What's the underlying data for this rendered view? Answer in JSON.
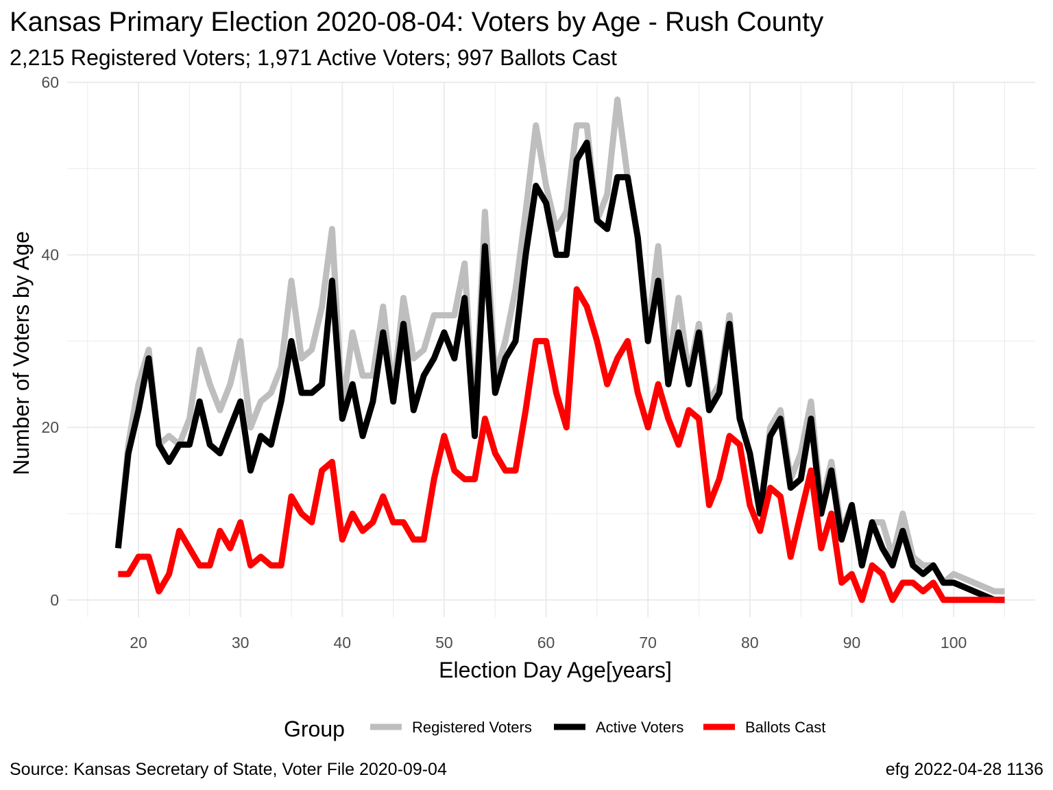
{
  "title": "Kansas Primary Election 2020-08-04:  Voters by Age - Rush County",
  "subtitle": "2,215 Registered Voters; 1,971 Active Voters; 997 Ballots Cast",
  "caption_left": "Source:  Kansas Secretary of State, Voter File  2020-09-04",
  "caption_right": "efg 2022-04-28 1136",
  "colors": {
    "registered": "#bebebe",
    "active": "#000000",
    "ballots": "#ff0000",
    "grid": "#ebebeb"
  },
  "chart_data": {
    "type": "line",
    "xlabel": "Election Day Age[years]",
    "ylabel": "Number of Voters by Age",
    "xlim": [
      13,
      108
    ],
    "ylim": [
      -2,
      60
    ],
    "x_ticks": [
      20,
      30,
      40,
      50,
      60,
      70,
      80,
      90,
      100
    ],
    "y_ticks": [
      0,
      20,
      40,
      60
    ],
    "grid": true,
    "legend": {
      "title": "Group",
      "position": "bottom"
    },
    "x": [
      18,
      19,
      20,
      21,
      22,
      23,
      24,
      25,
      26,
      27,
      28,
      29,
      30,
      31,
      32,
      33,
      34,
      35,
      36,
      37,
      38,
      39,
      40,
      41,
      42,
      43,
      44,
      45,
      46,
      47,
      48,
      49,
      50,
      51,
      52,
      53,
      54,
      55,
      56,
      57,
      58,
      59,
      60,
      61,
      62,
      63,
      64,
      65,
      66,
      67,
      68,
      69,
      70,
      71,
      72,
      73,
      74,
      75,
      76,
      77,
      78,
      79,
      80,
      81,
      82,
      83,
      84,
      85,
      86,
      87,
      88,
      89,
      90,
      91,
      92,
      93,
      94,
      95,
      96,
      97,
      98,
      99,
      100,
      101,
      102,
      103,
      104,
      105
    ],
    "series": [
      {
        "name": "Registered Voters",
        "color": "#bebebe",
        "values": [
          6,
          18,
          25,
          29,
          18,
          19,
          18,
          21,
          29,
          25,
          22,
          25,
          30,
          20,
          23,
          24,
          27,
          37,
          28,
          29,
          34,
          43,
          22,
          31,
          26,
          26,
          34,
          24,
          35,
          28,
          29,
          33,
          33,
          33,
          39,
          20,
          45,
          26,
          30,
          36,
          45,
          55,
          48,
          43,
          45,
          55,
          55,
          44,
          47,
          58,
          49,
          42,
          31,
          41,
          27,
          35,
          26,
          32,
          23,
          25,
          33,
          21,
          17,
          10,
          20,
          22,
          14,
          17,
          23,
          11,
          16,
          8,
          11,
          4,
          9,
          9,
          5,
          10,
          5,
          4,
          4,
          2,
          3,
          2.5,
          2,
          1.5,
          1,
          1
        ]
      },
      {
        "name": "Active Voters",
        "color": "#000000",
        "values": [
          6,
          17,
          22,
          28,
          18,
          16,
          18,
          18,
          23,
          18,
          17,
          20,
          23,
          15,
          19,
          18,
          23,
          30,
          24,
          24,
          25,
          37,
          21,
          25,
          19,
          23,
          31,
          23,
          32,
          22,
          26,
          28,
          31,
          28,
          35,
          19,
          41,
          24,
          28,
          30,
          40,
          48,
          46,
          40,
          40,
          51,
          53,
          44,
          43,
          49,
          49,
          42,
          30,
          37,
          25,
          31,
          25,
          31,
          22,
          24,
          32,
          21,
          17,
          10,
          19,
          21,
          13,
          14,
          21,
          10,
          15,
          7,
          11,
          4,
          9,
          6,
          4,
          8,
          4,
          3,
          4,
          2,
          2,
          1.5,
          1,
          0.5,
          0,
          0
        ]
      },
      {
        "name": "Ballots Cast",
        "color": "#ff0000",
        "values": [
          3,
          3,
          5,
          5,
          1,
          3,
          8,
          6,
          4,
          4,
          8,
          6,
          9,
          4,
          5,
          4,
          4,
          12,
          10,
          9,
          15,
          16,
          7,
          10,
          8,
          9,
          12,
          9,
          9,
          7,
          7,
          14,
          19,
          15,
          14,
          14,
          21,
          17,
          15,
          15,
          22,
          30,
          30,
          24,
          20,
          36,
          34,
          30,
          25,
          28,
          30,
          24,
          20,
          25,
          21,
          18,
          22,
          21,
          11,
          14,
          19,
          18,
          11,
          8,
          13,
          12,
          5,
          10,
          15,
          6,
          10,
          2,
          3,
          0,
          4,
          3,
          0,
          2,
          2,
          1,
          2,
          0,
          0,
          0,
          0,
          0,
          0,
          0
        ]
      }
    ]
  }
}
